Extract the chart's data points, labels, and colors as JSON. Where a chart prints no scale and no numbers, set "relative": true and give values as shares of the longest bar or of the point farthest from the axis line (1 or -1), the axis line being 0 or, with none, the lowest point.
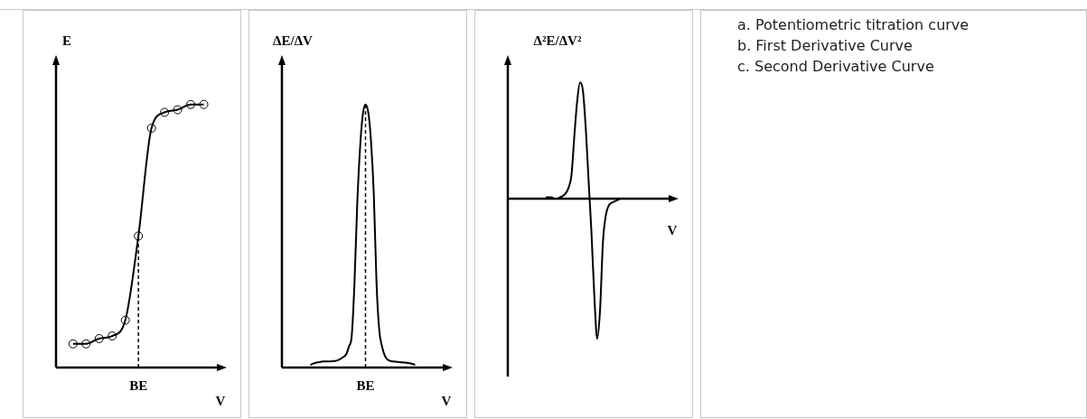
{
  "chart_data": [
    {
      "type": "line",
      "relative": true,
      "ylabel": "E",
      "xlabel": "V",
      "marker": "circle",
      "annotations": [
        "BE"
      ],
      "categories": [
        null,
        null,
        null,
        null,
        null,
        null,
        null,
        null,
        null,
        null,
        null
      ],
      "series": [
        {
          "color": "#000000",
          "values": [
            0.09,
            0.09,
            0.11,
            0.12,
            0.18,
            0.5,
            0.91,
            0.97,
            0.98,
            1.0,
            1.0
          ]
        }
      ]
    },
    {
      "type": "line",
      "relative": true,
      "ylabel": "ΔE/ΔV",
      "xlabel": "V",
      "annotations": [
        "BE"
      ],
      "categories": [
        null,
        null,
        null,
        null,
        null,
        null,
        null,
        null,
        null,
        null,
        null,
        null,
        null,
        null,
        null,
        null,
        null,
        null,
        null,
        null,
        null,
        null,
        null,
        null,
        null,
        null,
        null,
        null,
        null,
        null,
        null,
        null,
        null,
        null,
        null,
        null,
        null,
        null,
        null,
        null,
        null,
        null,
        null,
        null,
        null,
        null,
        null,
        null,
        null,
        null,
        null,
        null,
        null,
        null,
        null,
        null,
        null
      ],
      "series": [
        {
          "color": "#000000",
          "values": [
            null,
            null,
            null,
            null,
            null,
            null,
            null,
            null,
            null,
            0.01,
            0.015,
            0.018,
            0.02,
            0.022,
            0.023,
            0.023,
            0.023,
            0.024,
            0.025,
            0.028,
            0.033,
            0.04,
            0.05,
            0.08,
            0.12,
            0.32,
            0.62,
            0.83,
            0.96,
            1.0,
            0.97,
            0.86,
            0.66,
            0.32,
            0.14,
            0.08,
            0.045,
            0.03,
            0.025,
            0.023,
            0.022,
            0.021,
            0.02,
            0.019,
            0.018,
            0.016,
            0.014,
            0.01,
            null,
            null,
            null,
            null,
            null,
            null,
            null,
            null,
            null
          ]
        }
      ]
    },
    {
      "type": "line",
      "relative": true,
      "ylabel": "Δ²E/ΔV²",
      "xlabel": "V",
      "categories": [
        null,
        null,
        null,
        null,
        null,
        null,
        null,
        null,
        null,
        null,
        null,
        null,
        null,
        null,
        null,
        null,
        null,
        null,
        null,
        null,
        null,
        null,
        null,
        null,
        null,
        null,
        null,
        null,
        null,
        null,
        null,
        null,
        null,
        null,
        null,
        null,
        null,
        null,
        null,
        null,
        null,
        null,
        null,
        null,
        null,
        null,
        null,
        null,
        null,
        null,
        null,
        null,
        null,
        null,
        null
      ],
      "series": [
        {
          "color": "#000000",
          "values": [
            null,
            null,
            null,
            null,
            null,
            null,
            null,
            null,
            null,
            null,
            null,
            null,
            0.01,
            0.01,
            0.01,
            0.0,
            0.0,
            0.01,
            0.02,
            0.04,
            0.08,
            0.17,
            0.45,
            0.7,
            0.83,
            0.77,
            0.5,
            0.12,
            -0.25,
            -0.7,
            -1,
            -0.79,
            -0.31,
            -0.12,
            -0.05,
            -0.03,
            -0.02,
            -0.01,
            0.0,
            null,
            null,
            null,
            null,
            null,
            null,
            null,
            null,
            null,
            null,
            null,
            null,
            null,
            null,
            null,
            null
          ]
        }
      ]
    },
    {
      "type": "other",
      "annotations": [
        "a. Potentiometric titration curve",
        "b. First Derivative Curve",
        "c. Second Derivative Curve"
      ]
    }
  ]
}
